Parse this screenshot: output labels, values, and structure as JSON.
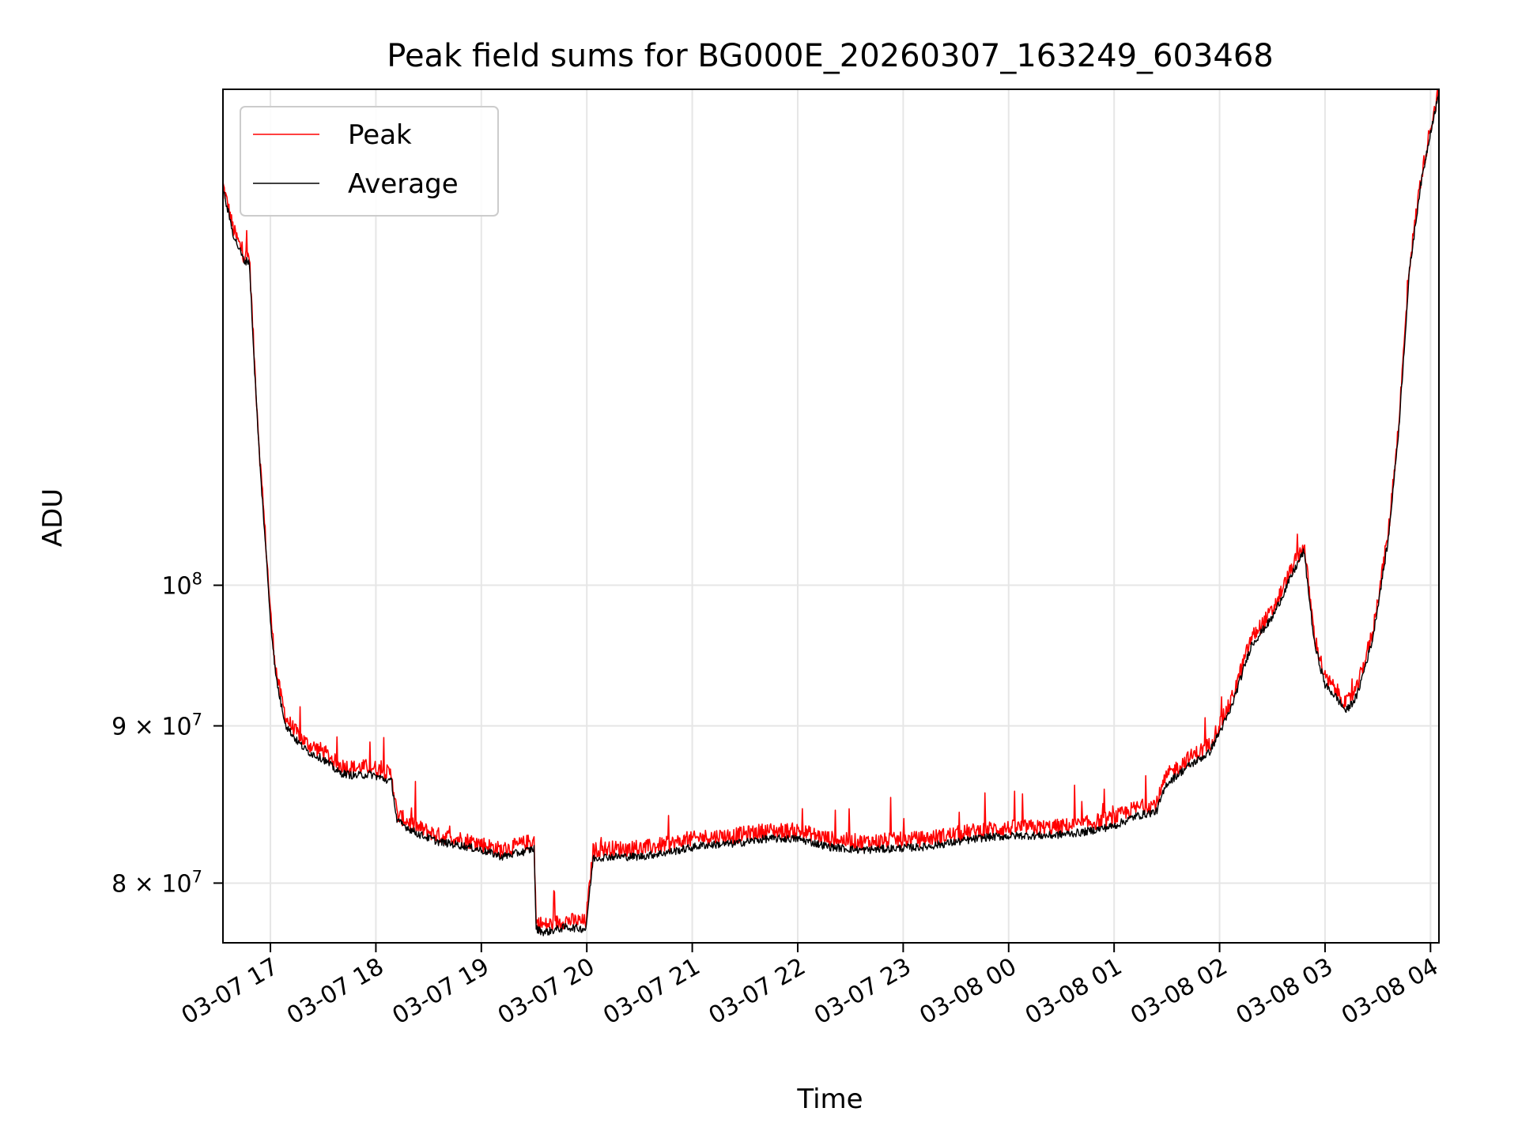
{
  "chart_data": {
    "type": "line",
    "title": "Peak field sums for BG000E_20260307_163249_603468",
    "xlabel": "Time",
    "ylabel": "ADU",
    "yscale": "log",
    "grid": true,
    "legend_position": "top-left",
    "x_unit": "hours since 2026-03-07 00:00",
    "xlim": [
      16.55,
      28.08
    ],
    "ylim": [
      76500000,
      145000000
    ],
    "x_ticks": [
      17,
      18,
      19,
      20,
      21,
      22,
      23,
      24,
      25,
      26,
      27,
      28
    ],
    "x_tick_labels": [
      "03-07 17",
      "03-07 18",
      "03-07 19",
      "03-07 20",
      "03-07 21",
      "03-07 22",
      "03-07 23",
      "03-08 00",
      "03-08 01",
      "03-08 02",
      "03-08 03",
      "03-08 04"
    ],
    "y_ticks": [
      {
        "value": 80000000,
        "base": "8 × 10",
        "exp": "7"
      },
      {
        "value": 90000000,
        "base": "9 × 10",
        "exp": "7"
      },
      {
        "value": 100000000,
        "base": "10",
        "exp": "8"
      }
    ],
    "series": [
      {
        "name": "Peak",
        "color": "#ff0000",
        "x": [
          16.55,
          16.65,
          16.75,
          16.8,
          16.85,
          16.9,
          16.95,
          17.0,
          17.05,
          17.1,
          17.15,
          17.25,
          17.35,
          17.5,
          17.65,
          17.8,
          17.95,
          18.15,
          18.2,
          18.4,
          18.6,
          18.8,
          19.0,
          19.2,
          19.4,
          19.5,
          19.52,
          19.6,
          19.8,
          19.99,
          20.03,
          20.06,
          20.2,
          20.5,
          20.8,
          21.1,
          21.4,
          21.7,
          22.0,
          22.3,
          22.6,
          22.9,
          23.2,
          23.5,
          23.8,
          24.1,
          24.4,
          24.7,
          25.0,
          25.2,
          25.4,
          25.5,
          25.7,
          25.9,
          26.1,
          26.3,
          26.5,
          26.7,
          26.8,
          26.9,
          27.0,
          27.1,
          27.2,
          27.3,
          27.45,
          27.6,
          27.7,
          27.8,
          27.9,
          28.0,
          28.08
        ],
        "y": [
          135000000,
          130500000,
          128000000,
          128000000,
          118000000,
          110000000,
          104000000,
          98000000,
          94000000,
          92000000,
          90500000,
          89500000,
          88800000,
          88300000,
          87400000,
          87200000,
          87300000,
          86800000,
          84200000,
          83400000,
          82900000,
          82700000,
          82400000,
          82000000,
          82400000,
          82600000,
          77700000,
          77500000,
          77800000,
          77700000,
          80000000,
          82000000,
          82100000,
          82100000,
          82400000,
          82800000,
          82900000,
          83200000,
          83200000,
          82700000,
          82500000,
          82600000,
          82700000,
          83000000,
          83300000,
          83400000,
          83400000,
          83600000,
          84000000,
          84600000,
          84900000,
          86700000,
          87800000,
          88700000,
          91500000,
          96100000,
          98100000,
          101500000,
          103100000,
          96200000,
          93300000,
          92500000,
          91500000,
          92500000,
          96500000,
          104000000,
          113000000,
          127000000,
          135000000,
          141000000,
          145000000
        ]
      },
      {
        "name": "Average",
        "color": "#000000",
        "x": [
          16.55,
          16.65,
          16.75,
          16.8,
          16.85,
          16.9,
          16.95,
          17.0,
          17.05,
          17.1,
          17.15,
          17.25,
          17.35,
          17.5,
          17.65,
          17.8,
          17.95,
          18.15,
          18.2,
          18.4,
          18.6,
          18.8,
          19.0,
          19.2,
          19.4,
          19.5,
          19.52,
          19.6,
          19.8,
          19.99,
          20.03,
          20.06,
          20.2,
          20.5,
          20.8,
          21.1,
          21.4,
          21.7,
          22.0,
          22.3,
          22.6,
          22.9,
          23.2,
          23.5,
          23.8,
          24.1,
          24.4,
          24.7,
          25.0,
          25.2,
          25.4,
          25.5,
          25.7,
          25.9,
          26.1,
          26.3,
          26.5,
          26.7,
          26.8,
          26.9,
          27.0,
          27.1,
          27.2,
          27.3,
          27.45,
          27.6,
          27.7,
          27.8,
          27.9,
          28.0,
          28.08
        ],
        "y": [
          134500000,
          130000000,
          127500000,
          127500000,
          117500000,
          109500000,
          103500000,
          97500000,
          93500000,
          91500000,
          90000000,
          89000000,
          88300000,
          87800000,
          86900000,
          86700000,
          86800000,
          86300000,
          83800000,
          83000000,
          82500000,
          82300000,
          82000000,
          81600000,
          81900000,
          82100000,
          77300000,
          77100000,
          77400000,
          77300000,
          79600000,
          81500000,
          81600000,
          81600000,
          81900000,
          82300000,
          82400000,
          82700000,
          82700000,
          82200000,
          82000000,
          82100000,
          82200000,
          82500000,
          82800000,
          82900000,
          82900000,
          83100000,
          83500000,
          84100000,
          84400000,
          86200000,
          87300000,
          88200000,
          91000000,
          95600000,
          97600000,
          101000000,
          102600000,
          95700000,
          92800000,
          92000000,
          91000000,
          92000000,
          96000000,
          103500000,
          112500000,
          126500000,
          134500000,
          140500000,
          144500000
        ]
      }
    ]
  }
}
